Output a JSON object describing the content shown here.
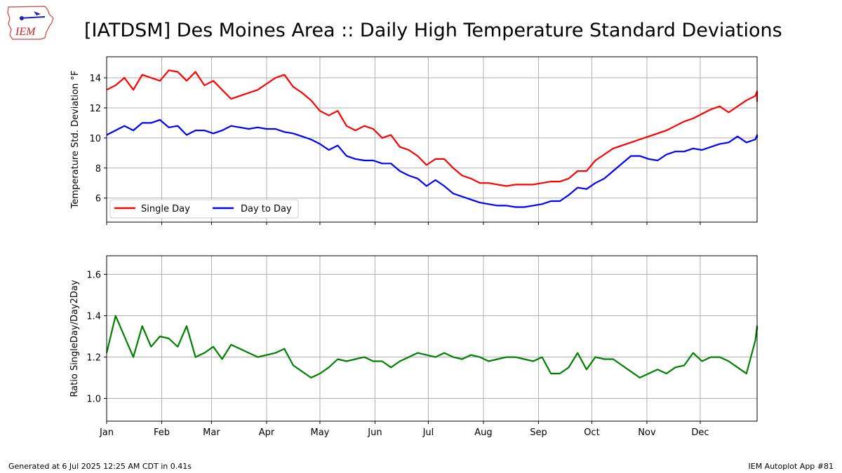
{
  "title": "[IATDSM] Des Moines Area :: Daily High Temperature Standard Deviations",
  "logo_text": "IEM",
  "footer": {
    "generated": "Generated at 6 Jul 2025 12:25 AM CDT in 0.41s",
    "app": "IEM Autoplot App #81"
  },
  "colors": {
    "single": "#ff0000",
    "day2day": "#0000ff",
    "ratio": "#008000",
    "grid": "#b0b0b0"
  },
  "chart_data": [
    {
      "type": "line",
      "ylabel": "Temperature Std. Deviation °F",
      "ylim": [
        4.4,
        15.4
      ],
      "yticks": [
        6,
        8,
        10,
        12,
        14
      ],
      "grid": true,
      "legend_placement": "lower-left",
      "xlim": [
        0,
        366
      ],
      "month_ticks": [
        0,
        31,
        59,
        90,
        120,
        151,
        181,
        212,
        243,
        273,
        304,
        334
      ],
      "series": [
        {
          "name": "Single Day",
          "x_step_days": 5,
          "values": [
            13.2,
            13.5,
            14.0,
            13.2,
            14.2,
            14.0,
            13.8,
            14.5,
            14.4,
            13.8,
            14.4,
            13.5,
            13.8,
            13.2,
            12.6,
            12.8,
            13.0,
            13.2,
            13.6,
            14.0,
            14.2,
            13.4,
            13.0,
            12.5,
            11.8,
            11.5,
            11.8,
            10.8,
            10.5,
            10.8,
            10.6,
            10.0,
            10.2,
            9.4,
            9.2,
            8.8,
            8.2,
            8.6,
            8.6,
            8.0,
            7.5,
            7.3,
            7.0,
            7.0,
            6.9,
            6.8,
            6.9,
            6.9,
            6.9,
            7.0,
            7.1,
            7.1,
            7.3,
            7.8,
            7.8,
            8.5,
            8.9,
            9.3,
            9.5,
            9.7,
            9.9,
            10.1,
            10.3,
            10.5,
            10.8,
            11.1,
            11.3,
            11.6,
            11.9,
            12.1,
            11.7,
            12.1,
            12.5,
            12.8,
            13.1,
            12.4
          ]
        },
        {
          "name": "Day to Day",
          "x_step_days": 5,
          "values": [
            10.2,
            10.5,
            10.8,
            10.5,
            11.0,
            11.0,
            11.2,
            10.7,
            10.8,
            10.2,
            10.5,
            10.5,
            10.3,
            10.5,
            10.8,
            10.7,
            10.6,
            10.7,
            10.6,
            10.6,
            10.4,
            10.3,
            10.1,
            9.9,
            9.6,
            9.2,
            9.5,
            8.8,
            8.6,
            8.5,
            8.5,
            8.3,
            8.3,
            7.8,
            7.5,
            7.3,
            6.8,
            7.2,
            6.8,
            6.3,
            6.1,
            5.9,
            5.7,
            5.6,
            5.5,
            5.5,
            5.4,
            5.4,
            5.5,
            5.6,
            5.8,
            5.8,
            6.2,
            6.7,
            6.6,
            7.0,
            7.3,
            7.8,
            8.3,
            8.8,
            8.8,
            8.6,
            8.5,
            8.9,
            9.1,
            9.1,
            9.3,
            9.2,
            9.4,
            9.6,
            9.7,
            10.1,
            9.7,
            9.9,
            10.2,
            10.0
          ]
        }
      ]
    },
    {
      "type": "line",
      "ylabel": "Ratio SingleDay/Day2Day",
      "ylim": [
        0.89,
        1.69
      ],
      "yticks": [
        1.0,
        1.2,
        1.4,
        1.6
      ],
      "grid": true,
      "xlim": [
        0,
        366
      ],
      "month_ticks": [
        0,
        31,
        59,
        90,
        120,
        151,
        181,
        212,
        243,
        273,
        304,
        334
      ],
      "x_tick_labels": [
        "Jan",
        "Feb",
        "Mar",
        "Apr",
        "May",
        "Jun",
        "Jul",
        "Aug",
        "Sep",
        "Oct",
        "Nov",
        "Dec"
      ],
      "series": [
        {
          "name": "",
          "x_step_days": 5,
          "values": [
            1.22,
            1.4,
            1.3,
            1.2,
            1.35,
            1.25,
            1.3,
            1.29,
            1.25,
            1.35,
            1.2,
            1.22,
            1.25,
            1.19,
            1.26,
            1.24,
            1.22,
            1.2,
            1.21,
            1.22,
            1.24,
            1.16,
            1.13,
            1.1,
            1.12,
            1.15,
            1.19,
            1.18,
            1.19,
            1.2,
            1.18,
            1.18,
            1.15,
            1.18,
            1.2,
            1.22,
            1.21,
            1.2,
            1.22,
            1.2,
            1.19,
            1.21,
            1.2,
            1.18,
            1.19,
            1.2,
            1.2,
            1.19,
            1.18,
            1.2,
            1.12,
            1.12,
            1.15,
            1.22,
            1.14,
            1.2,
            1.19,
            1.19,
            1.16,
            1.13,
            1.1,
            1.12,
            1.14,
            1.12,
            1.15,
            1.16,
            1.22,
            1.18,
            1.2,
            1.2,
            1.18,
            1.15,
            1.12,
            1.28,
            1.35,
            1.33
          ]
        }
      ]
    }
  ]
}
